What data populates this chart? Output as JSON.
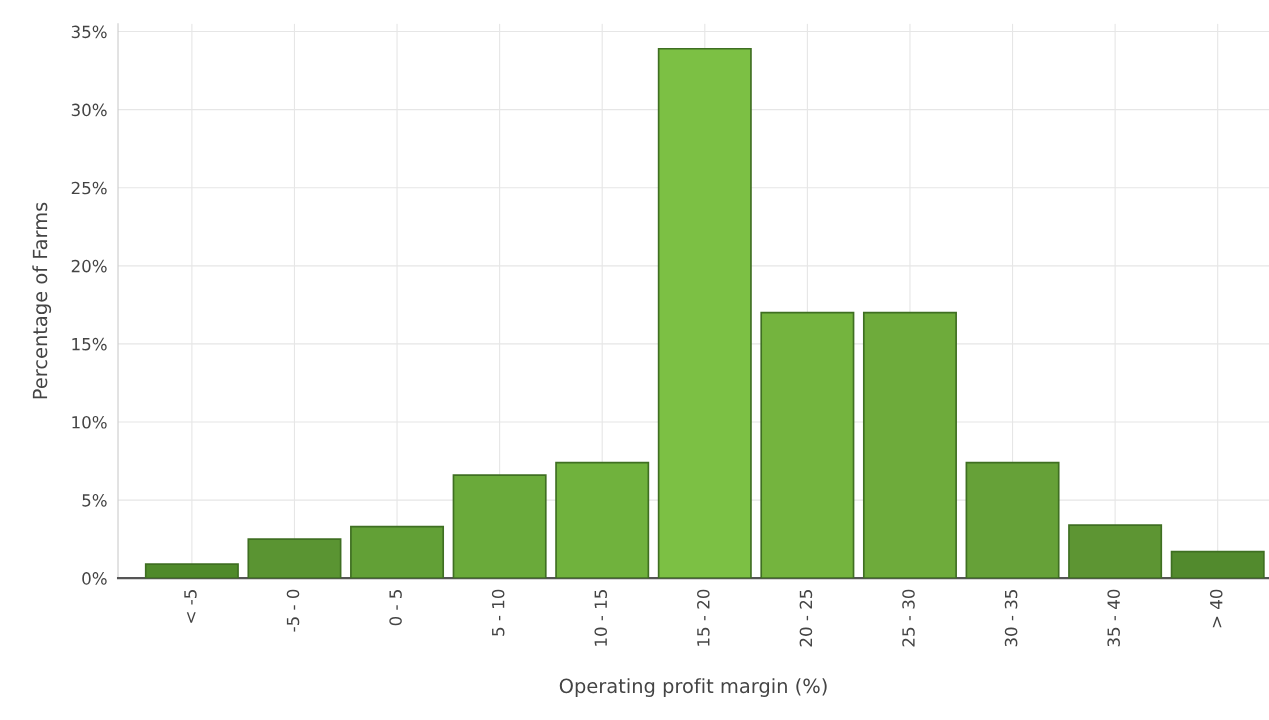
{
  "chart_data": {
    "type": "bar",
    "xlabel": "Operating profit margin (%)",
    "ylabel": "Percentage of Farms",
    "categories": [
      "< -5",
      "-5 - 0",
      "0 - 5",
      "5 - 10",
      "10 - 15",
      "15 - 20",
      "20 - 25",
      "25 - 30",
      "30 - 35",
      "35 - 40",
      "> 40"
    ],
    "values": [
      0.9,
      2.5,
      3.3,
      6.6,
      7.4,
      33.9,
      17.0,
      17.0,
      7.4,
      3.4,
      1.7
    ],
    "colors": [
      "#4f8a2a",
      "#5a9432",
      "#62a036",
      "#6aaa3a",
      "#70b23d",
      "#7cc044",
      "#74b43e",
      "#6eab3b",
      "#66a138",
      "#5d9533",
      "#528a2d"
    ],
    "ylim": [
      0,
      35.5
    ],
    "yticks": [
      {
        "value": 0,
        "label": "0%"
      },
      {
        "value": 5,
        "label": "5%"
      },
      {
        "value": 10,
        "label": "10%"
      },
      {
        "value": 15,
        "label": "15%"
      },
      {
        "value": 20,
        "label": "20%"
      },
      {
        "value": 25,
        "label": "25%"
      },
      {
        "value": 30,
        "label": "30%"
      },
      {
        "value": 35,
        "label": "35%"
      }
    ],
    "grid": true
  }
}
